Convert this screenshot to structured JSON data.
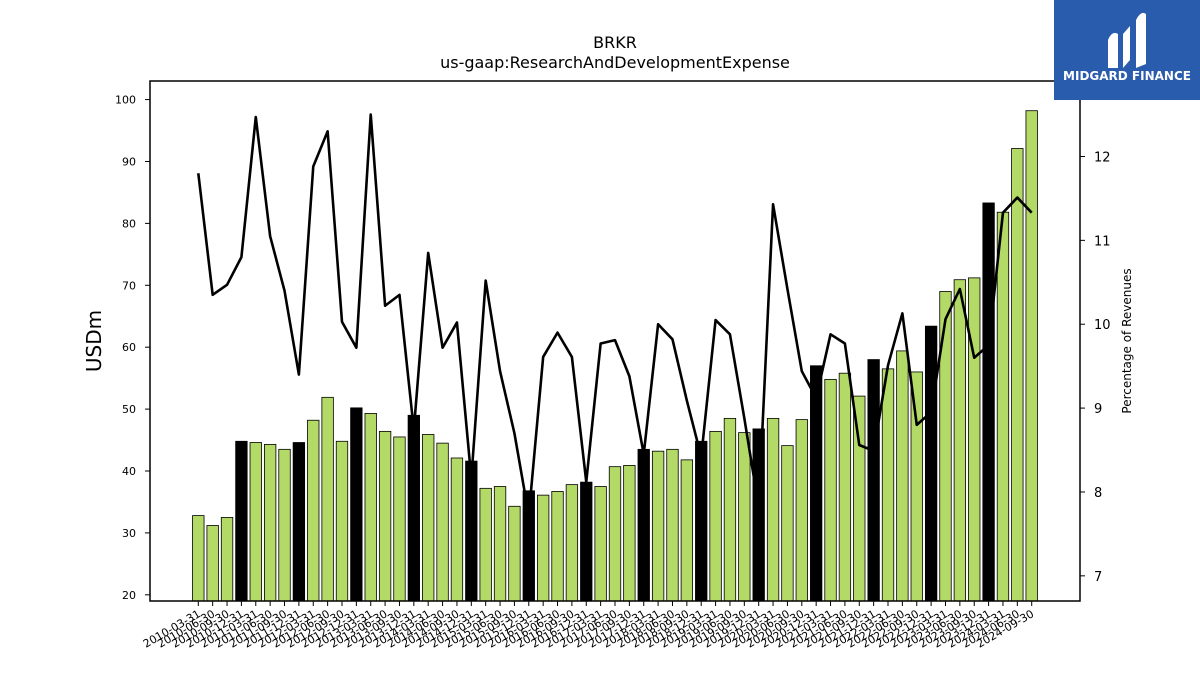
{
  "logo": {
    "text": "MIDGARD FINANCE"
  },
  "colors": {
    "bar_regular": "#b3d966",
    "bar_highlight": "#000000",
    "line": "#000000",
    "logo_bg": "#2a5cad"
  },
  "chart_data": {
    "type": "bar",
    "title": "BRKR",
    "subtitle": "us-gaap:ResearchAndDevelopmentExpense",
    "ylabel": "USDm",
    "y2label": "Percentage of Revenues",
    "ylim": [
      19,
      103
    ],
    "y2lim": [
      6.7,
      12.9
    ],
    "yticks": [
      20,
      30,
      40,
      50,
      60,
      70,
      80,
      90,
      100
    ],
    "y2ticks": [
      7,
      8,
      9,
      10,
      11,
      12
    ],
    "categories": [
      "2010-03-31",
      "2010-06-30",
      "2010-09-30",
      "2010-12-31",
      "2011-03-31",
      "2011-06-30",
      "2011-09-30",
      "2011-12-31",
      "2012-03-31",
      "2012-06-30",
      "2012-09-30",
      "2012-12-31",
      "2013-03-31",
      "2013-06-30",
      "2013-09-30",
      "2013-12-31",
      "2014-03-31",
      "2014-06-30",
      "2014-09-30",
      "2014-12-31",
      "2015-03-31",
      "2015-06-30",
      "2015-09-30",
      "2015-12-31",
      "2016-03-31",
      "2016-06-30",
      "2016-09-30",
      "2016-12-31",
      "2017-03-31",
      "2017-06-30",
      "2017-09-30",
      "2017-12-31",
      "2018-03-31",
      "2018-06-30",
      "2018-09-30",
      "2018-12-31",
      "2019-03-31",
      "2019-06-30",
      "2019-09-30",
      "2019-12-31",
      "2020-03-31",
      "2020-06-30",
      "2020-09-30",
      "2020-12-31",
      "2021-03-31",
      "2021-06-30",
      "2021-09-30",
      "2021-12-31",
      "2022-03-31",
      "2022-06-30",
      "2022-09-30",
      "2022-12-31",
      "2023-03-31",
      "2023-06-30",
      "2023-09-30",
      "2023-12-31",
      "2024-03-31",
      "2024-06-30",
      "2024-09-30"
    ],
    "x_tick_labels": [
      "2010-03-31",
      "2010-06-30",
      "2010-09-30",
      "2010-12-31",
      "2011-03-31",
      "2011-06-30",
      "2011-09-30",
      "2011-12-31",
      "2012-03-31",
      "2012-06-30",
      "2012-09-30",
      "2012-12-31",
      "2013-03-31",
      "2013-06-30",
      "2013-09-30",
      "2013-12-31",
      "2014-03-31",
      "2014-06-30",
      "2014-09-30",
      "2014-12-31",
      "2015-03-31",
      "2015-06-30",
      "2015-09-30",
      "2015-12-31",
      "2016-03-31",
      "2016-06-30",
      "2016-09-30",
      "2016-12-31",
      "2017-03-31",
      "2017-06-30",
      "2017-09-30",
      "2017-12-31",
      "2018-03-31",
      "2018-06-30",
      "2018-09-30",
      "2018-12-31",
      "2019-03-31",
      "2019-06-30",
      "2019-09-30",
      "2019-12-31",
      "2020-03-31",
      "2020-06-30",
      "2020-09-30",
      "2020-12-31",
      "2021-03-31",
      "2021-06-30",
      "2021-09-30",
      "2021-12-31",
      "2022-03-31",
      "2022-06-30",
      "2022-09-30",
      "2022-12-31",
      "2023-03-31",
      "2023-06-30",
      "2023-09-30",
      "2023-12-31",
      "2024-03-31",
      "2024-06-30",
      "2024-09-30"
    ],
    "series": [
      {
        "type": "bar",
        "axis": "left",
        "values": [
          32.8,
          31.2,
          32.5,
          44.8,
          44.6,
          44.3,
          43.5,
          44.6,
          48.2,
          51.9,
          44.8,
          50.2,
          49.3,
          46.4,
          45.5,
          49.0,
          45.9,
          44.5,
          42.1,
          41.6,
          37.2,
          37.5,
          34.3,
          36.8,
          36.1,
          36.7,
          37.8,
          38.2,
          37.5,
          40.7,
          40.9,
          43.5,
          43.2,
          43.5,
          41.8,
          44.8,
          46.4,
          48.5,
          46.2,
          46.8,
          48.5,
          44.1,
          48.3,
          57.0,
          54.8,
          55.8,
          52.1,
          58.0,
          56.5,
          59.4,
          56.0,
          63.4,
          69.0,
          70.9,
          71.2,
          83.3,
          81.8,
          92.1,
          98.2
        ],
        "highlight": [
          false,
          false,
          false,
          true,
          false,
          false,
          false,
          true,
          false,
          false,
          false,
          true,
          false,
          false,
          false,
          true,
          false,
          false,
          false,
          true,
          false,
          false,
          false,
          true,
          false,
          false,
          false,
          true,
          false,
          false,
          false,
          true,
          false,
          false,
          false,
          true,
          false,
          false,
          false,
          true,
          false,
          false,
          false,
          true,
          false,
          false,
          false,
          true,
          false,
          false,
          false,
          true,
          false,
          false,
          false,
          true,
          false,
          false,
          false
        ]
      },
      {
        "type": "line",
        "axis": "right",
        "values": [
          11.8,
          10.35,
          10.47,
          10.8,
          12.47,
          11.05,
          10.4,
          9.4,
          11.88,
          12.3,
          10.03,
          9.72,
          12.5,
          10.22,
          10.35,
          8.74,
          10.85,
          9.72,
          10.02,
          8.16,
          10.52,
          9.44,
          8.7,
          7.72,
          9.61,
          9.9,
          9.61,
          8.12,
          9.77,
          9.81,
          9.38,
          8.45,
          10.0,
          9.82,
          9.09,
          8.42,
          10.05,
          9.88,
          8.88,
          7.82,
          11.43,
          10.42,
          9.44,
          9.12,
          9.88,
          9.77,
          8.56,
          8.49,
          9.51,
          10.13,
          8.8,
          8.95,
          10.06,
          10.42,
          9.6,
          9.75,
          11.33,
          11.51,
          11.33
        ]
      }
    ]
  }
}
